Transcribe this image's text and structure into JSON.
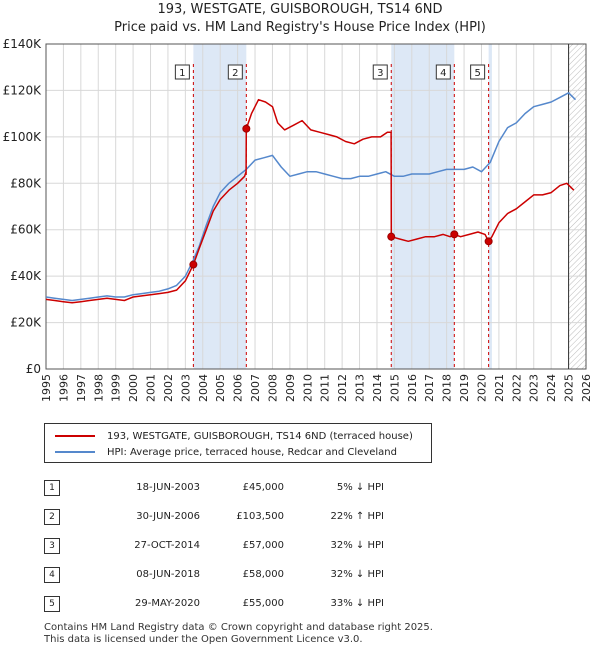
{
  "title_line1": "193, WESTGATE, GUISBOROUGH, TS14 6ND",
  "title_line2": "Price paid vs. HM Land Registry's House Price Index (HPI)",
  "legend": {
    "property": "193, WESTGATE, GUISBOROUGH, TS14 6ND (terraced house)",
    "hpi": "HPI: Average price, terraced house, Redcar and Cleveland"
  },
  "colors": {
    "property": "#cc0000",
    "hpi": "#5588cc",
    "shade": "#dde8f6",
    "grid": "#d8d8d8"
  },
  "sales": [
    {
      "num": "1",
      "date": "18-JUN-2003",
      "price": "£45,000",
      "hpi": "5% ↓ HPI"
    },
    {
      "num": "2",
      "date": "30-JUN-2006",
      "price": "£103,500",
      "hpi": "22% ↑ HPI"
    },
    {
      "num": "3",
      "date": "27-OCT-2014",
      "price": "£57,000",
      "hpi": "32% ↓ HPI"
    },
    {
      "num": "4",
      "date": "08-JUN-2018",
      "price": "£58,000",
      "hpi": "32% ↓ HPI"
    },
    {
      "num": "5",
      "date": "29-MAY-2020",
      "price": "£55,000",
      "hpi": "33% ↓ HPI"
    }
  ],
  "footer": {
    "line1": "Contains HM Land Registry data © Crown copyright and database right 2025.",
    "line2": "This data is licensed under the Open Government Licence v3.0."
  },
  "chart_data": {
    "type": "line",
    "title": "193, WESTGATE, GUISBOROUGH, TS14 6ND — Price paid vs. HM Land Registry's House Price Index (HPI)",
    "xlabel": "",
    "ylabel": "",
    "xlim": [
      1995,
      2026
    ],
    "ylim": [
      0,
      140000
    ],
    "y_ticks": [
      0,
      20000,
      40000,
      60000,
      80000,
      100000,
      120000,
      140000
    ],
    "y_tick_labels": [
      "£0",
      "£20K",
      "£40K",
      "£60K",
      "£80K",
      "£100K",
      "£120K",
      "£140K"
    ],
    "x_ticks": [
      1995,
      1996,
      1997,
      1998,
      1999,
      2000,
      2001,
      2002,
      2003,
      2004,
      2005,
      2006,
      2007,
      2008,
      2009,
      2010,
      2011,
      2012,
      2013,
      2014,
      2015,
      2016,
      2017,
      2018,
      2019,
      2020,
      2021,
      2022,
      2023,
      2024,
      2025,
      2026
    ],
    "x_tick_labels": [
      "1995",
      "1996",
      "1997",
      "1998",
      "1999",
      "2000",
      "2001",
      "2002",
      "2003",
      "2004",
      "2005",
      "2006",
      "2007",
      "2008",
      "2009",
      "2010",
      "2011",
      "2012",
      "2013",
      "2014",
      "2015",
      "2016",
      "2017",
      "2018",
      "2019",
      "2020",
      "2021",
      "2022",
      "2023",
      "2024",
      "2025",
      "2026"
    ],
    "shaded_spans": [
      [
        2003.46,
        2006.5
      ],
      [
        2014.82,
        2018.44
      ],
      [
        2020.41,
        2020.6
      ]
    ],
    "forecast_start": 2025.0,
    "series": [
      {
        "name": "193, WESTGATE, GUISBOROUGH, TS14 6ND (terraced house)",
        "color": "#cc0000",
        "x": [
          1995.0,
          1995.5,
          1996.0,
          1996.5,
          1997.0,
          1997.5,
          1998.0,
          1998.5,
          1999.0,
          1999.5,
          2000.0,
          2000.5,
          2001.0,
          2001.5,
          2002.0,
          2002.5,
          2003.0,
          2003.46,
          2003.8,
          2004.2,
          2004.6,
          2005.0,
          2005.5,
          2006.0,
          2006.4,
          2006.49,
          2006.5,
          2006.8,
          2007.2,
          2007.6,
          2008.0,
          2008.3,
          2008.7,
          2009.2,
          2009.7,
          2010.2,
          2010.7,
          2011.2,
          2011.7,
          2012.2,
          2012.7,
          2013.2,
          2013.7,
          2014.2,
          2014.6,
          2014.81,
          2014.82,
          2015.3,
          2015.8,
          2016.3,
          2016.8,
          2017.3,
          2017.8,
          2018.2,
          2018.44,
          2018.8,
          2019.3,
          2019.8,
          2020.2,
          2020.41,
          2020.6,
          2021.0,
          2021.5,
          2022.0,
          2022.5,
          2023.0,
          2023.5,
          2024.0,
          2024.5,
          2024.9,
          2025.3
        ],
        "values": [
          30000,
          29500,
          29000,
          28500,
          29000,
          29500,
          30000,
          30500,
          30000,
          29500,
          31000,
          31500,
          32000,
          32500,
          33000,
          34000,
          38000,
          45000,
          52000,
          60000,
          68000,
          73000,
          77000,
          80000,
          83000,
          85000,
          103500,
          110000,
          116000,
          115000,
          113000,
          106000,
          103000,
          105000,
          107000,
          103000,
          102000,
          101000,
          100000,
          98000,
          97000,
          99000,
          100000,
          100000,
          102000,
          102000,
          57000,
          56000,
          55000,
          56000,
          57000,
          57000,
          58000,
          57000,
          58000,
          57000,
          58000,
          59000,
          58000,
          55000,
          57000,
          63000,
          67000,
          69000,
          72000,
          75000,
          75000,
          76000,
          79000,
          80000,
          77000
        ]
      },
      {
        "name": "HPI: Average price, terraced house, Redcar and Cleveland",
        "color": "#5588cc",
        "x": [
          1995.0,
          1995.5,
          1996.0,
          1996.5,
          1997.0,
          1997.5,
          1998.0,
          1998.5,
          1999.0,
          1999.5,
          2000.0,
          2000.5,
          2001.0,
          2001.5,
          2002.0,
          2002.5,
          2003.0,
          2003.46,
          2003.8,
          2004.2,
          2004.6,
          2005.0,
          2005.5,
          2006.0,
          2006.5,
          2007.0,
          2007.5,
          2008.0,
          2008.5,
          2009.0,
          2009.5,
          2010.0,
          2010.5,
          2011.0,
          2011.5,
          2012.0,
          2012.5,
          2013.0,
          2013.5,
          2014.0,
          2014.5,
          2015.0,
          2015.5,
          2016.0,
          2016.5,
          2017.0,
          2017.5,
          2018.0,
          2018.5,
          2019.0,
          2019.5,
          2020.0,
          2020.5,
          2021.0,
          2021.5,
          2022.0,
          2022.5,
          2023.0,
          2023.5,
          2024.0,
          2024.5,
          2025.0,
          2025.4
        ],
        "values": [
          31000,
          30500,
          30000,
          29500,
          30000,
          30500,
          31000,
          31500,
          31000,
          31000,
          32000,
          32500,
          33000,
          33500,
          34500,
          36000,
          40000,
          47000,
          53000,
          62000,
          70000,
          76000,
          80000,
          83000,
          86000,
          90000,
          91000,
          92000,
          87000,
          83000,
          84000,
          85000,
          85000,
          84000,
          83000,
          82000,
          82000,
          83000,
          83000,
          84000,
          85000,
          83000,
          83000,
          84000,
          84000,
          84000,
          85000,
          86000,
          86000,
          86000,
          87000,
          85000,
          89000,
          98000,
          104000,
          106000,
          110000,
          113000,
          114000,
          115000,
          117000,
          119000,
          116000
        ]
      }
    ],
    "markers": [
      {
        "label": "1",
        "x": 2003.46,
        "y": 45000
      },
      {
        "label": "2",
        "x": 2006.5,
        "y": 103500
      },
      {
        "label": "3",
        "x": 2014.82,
        "y": 57000
      },
      {
        "label": "4",
        "x": 2018.44,
        "y": 58000
      },
      {
        "label": "5",
        "x": 2020.41,
        "y": 55000
      }
    ]
  }
}
